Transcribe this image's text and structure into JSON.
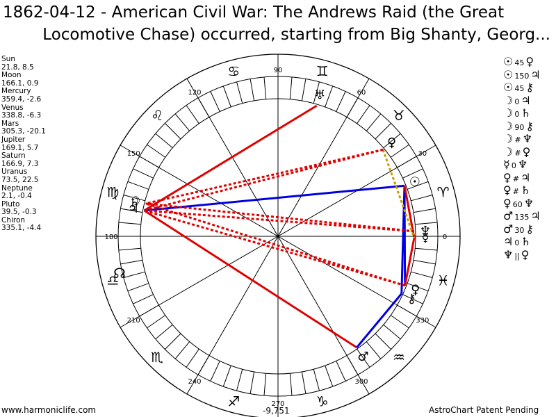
{
  "title": {
    "line1": "1862-04-12 - American Civil War: The Andrews Raid (the Great",
    "line2": "Locomotive Chase) occurred, starting from Big Shanty, Georg..."
  },
  "positions": [
    {
      "name": "Sun",
      "value": "21.8, 8.5"
    },
    {
      "name": "Moon",
      "value": "166.1, 0.9"
    },
    {
      "name": "Mercury",
      "value": "359.4, -2.6"
    },
    {
      "name": "Venus",
      "value": "338.8, -6.3"
    },
    {
      "name": "Mars",
      "value": "305.3, -20.1"
    },
    {
      "name": "Jupiter",
      "value": "169.1, 5.7"
    },
    {
      "name": "Saturn",
      "value": "166.9, 7.3"
    },
    {
      "name": "Uranus",
      "value": "73.5, 22.5"
    },
    {
      "name": "Neptune",
      "value": "2.1, -0.4"
    },
    {
      "name": "Pluto",
      "value": "39.5, -0.3"
    },
    {
      "name": "Chiron",
      "value": "335.1, -4.4"
    }
  ],
  "aspects": [
    {
      "p1": "☉",
      "a": "45",
      "p2": "♀"
    },
    {
      "p1": "☉",
      "a": "150",
      "p2": "♃"
    },
    {
      "p1": "☉",
      "a": "45",
      "p2": "⚷"
    },
    {
      "p1": "☽",
      "a": "0",
      "p2": "♃"
    },
    {
      "p1": "☽",
      "a": "0",
      "p2": "♄"
    },
    {
      "p1": "☽",
      "a": "90",
      "p2": "⚷"
    },
    {
      "p1": "☽",
      "a": "#",
      "p2": "♆"
    },
    {
      "p1": "☽",
      "a": "#",
      "p2": "♀"
    },
    {
      "p1": "☿",
      "a": "0",
      "p2": "♆"
    },
    {
      "p1": "♀",
      "a": "#",
      "p2": "♃"
    },
    {
      "p1": "♀",
      "a": "#",
      "p2": "♄"
    },
    {
      "p1": "♀",
      "a": "60",
      "p2": "♆"
    },
    {
      "p1": "♂",
      "a": "135",
      "p2": "♃"
    },
    {
      "p1": "♂",
      "a": "30",
      "p2": "⚷"
    },
    {
      "p1": "♃",
      "a": "0",
      "p2": "♄"
    },
    {
      "p1": "♆",
      "a": "||",
      "p2": "♀"
    }
  ],
  "wheel": {
    "degree_labels": [
      "0",
      "30",
      "60",
      "90",
      "120",
      "150",
      "180",
      "210",
      "240",
      "270",
      "300",
      "330"
    ],
    "signs": [
      "♈",
      "♉",
      "♊",
      "♋",
      "♌",
      "♍",
      "♎",
      "♏",
      "♐",
      "♑",
      "♒",
      "♓"
    ],
    "node_glyph": "☊",
    "planets": [
      {
        "glyph": "☉",
        "lon": 21.8,
        "color": "#000000"
      },
      {
        "glyph": "☽",
        "lon": 166.1,
        "color": "#000000"
      },
      {
        "glyph": "☿",
        "lon": 359.4,
        "color": "#000000"
      },
      {
        "glyph": "♀",
        "lon": 338.8,
        "color": "#000000"
      },
      {
        "glyph": "♂",
        "lon": 305.3,
        "color": "#000000"
      },
      {
        "glyph": "♃",
        "lon": 169.1,
        "color": "#000000"
      },
      {
        "glyph": "♄",
        "lon": 166.9,
        "color": "#000000"
      },
      {
        "glyph": "♅",
        "lon": 73.5,
        "color": "#000000"
      },
      {
        "glyph": "♆",
        "lon": 2.1,
        "color": "#000000"
      },
      {
        "glyph": "♀",
        "lon": 39.5,
        "color": "#000000"
      },
      {
        "glyph": "⚷",
        "lon": 335.1,
        "color": "#000000"
      }
    ],
    "aspect_lines": [
      {
        "a": 73.5,
        "b": 169.1,
        "color": "#e00000",
        "style": "solid"
      },
      {
        "a": 169.1,
        "b": 305.3,
        "color": "#e00000",
        "style": "solid"
      },
      {
        "a": 21.8,
        "b": 169.1,
        "color": "#0000e0",
        "style": "solid"
      },
      {
        "a": 305.3,
        "b": 335.1,
        "color": "#0000e0",
        "style": "solid"
      },
      {
        "a": 21.8,
        "b": 335.1,
        "color": "#0000e0",
        "style": "solid"
      },
      {
        "a": 21.8,
        "b": 338.8,
        "color": "#0000e0",
        "style": "solid"
      },
      {
        "a": 21.8,
        "b": 359.4,
        "color": "#e00000",
        "style": "solid"
      },
      {
        "a": 338.8,
        "b": 359.4,
        "color": "#e00000",
        "style": "solid"
      },
      {
        "a": 39.5,
        "b": 359.4,
        "color": "#c8a000",
        "style": "dotted"
      },
      {
        "a": 39.5,
        "b": 166.1,
        "color": "#e00000",
        "style": "dotted"
      },
      {
        "a": 39.5,
        "b": 169.1,
        "color": "#e00000",
        "style": "dotted"
      },
      {
        "a": 2.1,
        "b": 166.1,
        "color": "#e00000",
        "style": "dotted"
      },
      {
        "a": 2.1,
        "b": 169.1,
        "color": "#e00000",
        "style": "dotted"
      },
      {
        "a": 338.8,
        "b": 166.1,
        "color": "#e00000",
        "style": "dotted"
      },
      {
        "a": 338.8,
        "b": 169.1,
        "color": "#e00000",
        "style": "dotted"
      }
    ]
  },
  "footer": {
    "left": "www.harmoniclife.com",
    "center": "-9,751",
    "right": "AstroChart Patent Pending"
  }
}
